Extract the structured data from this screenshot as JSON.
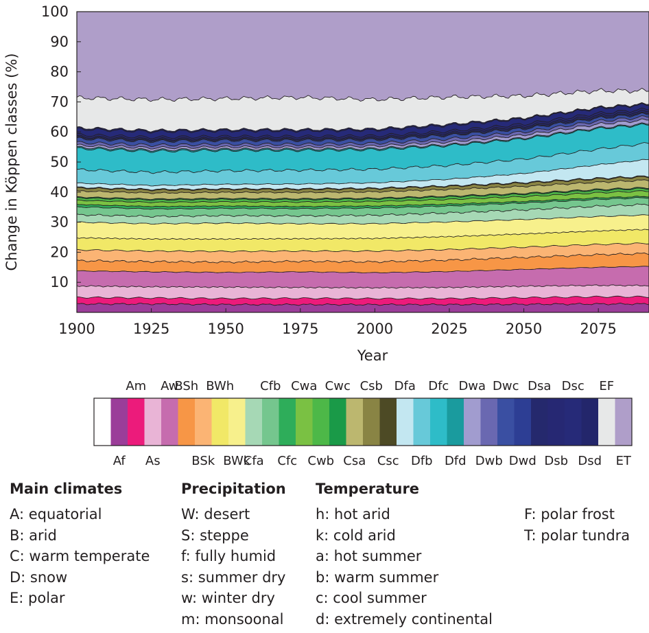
{
  "chart_data": {
    "type": "area",
    "stacked": true,
    "xlabel": "Year",
    "ylabel": "Change in Köppen classes (%)",
    "xlim": [
      1900,
      2092
    ],
    "ylim": [
      0,
      100
    ],
    "xticks": [
      1900,
      1925,
      1950,
      1975,
      2000,
      2025,
      2050,
      2075
    ],
    "yticks": [
      10,
      20,
      30,
      40,
      50,
      60,
      70,
      80,
      90,
      100
    ],
    "x": [
      1900,
      1925,
      1950,
      1975,
      2000,
      2025,
      2050,
      2075,
      2092
    ],
    "series": [
      {
        "name": "Af",
        "color": "#9b3d99",
        "values": [
          2.8,
          2.8,
          2.6,
          2.6,
          2.6,
          2.6,
          2.7,
          2.8,
          2.8
        ]
      },
      {
        "name": "Am",
        "color": "#ec1b7b",
        "values": [
          2.2,
          2.0,
          2.0,
          2.1,
          2.0,
          2.0,
          2.2,
          2.4,
          2.4
        ]
      },
      {
        "name": "As",
        "color": "#e9b4d6",
        "values": [
          3.8,
          3.7,
          3.8,
          3.6,
          3.6,
          3.7,
          3.8,
          3.8,
          3.7
        ]
      },
      {
        "name": "Aw",
        "color": "#c66cae",
        "values": [
          5.0,
          5.0,
          4.9,
          5.2,
          5.0,
          5.3,
          5.6,
          6.0,
          6.4
        ]
      },
      {
        "name": "BSh",
        "color": "#f79646",
        "values": [
          3.4,
          3.4,
          3.4,
          3.5,
          3.6,
          3.8,
          4.0,
          4.2,
          4.3
        ]
      },
      {
        "name": "BSk",
        "color": "#fbb474",
        "values": [
          3.6,
          3.5,
          3.6,
          3.4,
          3.6,
          3.5,
          3.4,
          3.4,
          3.4
        ]
      },
      {
        "name": "BWh",
        "color": "#f1e867",
        "values": [
          4.0,
          4.0,
          4.1,
          4.1,
          4.2,
          4.3,
          4.4,
          4.5,
          4.6
        ]
      },
      {
        "name": "BWk",
        "color": "#f7f08c",
        "values": [
          5.2,
          5.1,
          5.3,
          5.0,
          4.9,
          4.9,
          4.8,
          4.8,
          4.8
        ]
      },
      {
        "name": "Cfa",
        "color": "#a6d8b5",
        "values": [
          2.5,
          2.4,
          2.5,
          2.6,
          2.8,
          3.0,
          3.2,
          3.4,
          3.5
        ]
      },
      {
        "name": "Cfb",
        "color": "#75c68e",
        "values": [
          2.6,
          2.5,
          2.4,
          2.4,
          2.4,
          2.3,
          2.3,
          2.3,
          2.3
        ]
      },
      {
        "name": "Cfc",
        "color": "#2ead5a",
        "values": [
          0.8,
          0.8,
          0.8,
          0.7,
          0.7,
          0.6,
          0.5,
          0.5,
          0.4
        ]
      },
      {
        "name": "Cwa",
        "color": "#7ac143",
        "values": [
          1.4,
          1.4,
          1.4,
          1.5,
          1.5,
          1.6,
          1.6,
          1.7,
          1.8
        ]
      },
      {
        "name": "Cwb",
        "color": "#4db848",
        "values": [
          0.8,
          0.8,
          0.8,
          0.8,
          0.8,
          0.8,
          0.8,
          0.8,
          0.8
        ]
      },
      {
        "name": "Cwc",
        "color": "#1a9a48",
        "values": [
          0.3,
          0.3,
          0.3,
          0.3,
          0.3,
          0.3,
          0.3,
          0.3,
          0.3
        ]
      },
      {
        "name": "Csa",
        "color": "#bcb76f",
        "values": [
          2.0,
          2.0,
          2.0,
          2.1,
          2.1,
          2.2,
          2.3,
          2.4,
          2.5
        ]
      },
      {
        "name": "Csb",
        "color": "#898444",
        "values": [
          1.0,
          1.0,
          1.0,
          1.0,
          1.0,
          1.0,
          1.1,
          1.1,
          1.1
        ]
      },
      {
        "name": "Csc",
        "color": "#4d4a25",
        "values": [
          0.2,
          0.2,
          0.2,
          0.2,
          0.2,
          0.2,
          0.2,
          0.2,
          0.2
        ]
      },
      {
        "name": "Dfa",
        "color": "#c3e7f1",
        "values": [
          1.4,
          1.3,
          1.5,
          1.6,
          1.8,
          2.2,
          3.0,
          4.5,
          5.6
        ]
      },
      {
        "name": "Dfb",
        "color": "#67c9d9",
        "values": [
          4.5,
          4.4,
          4.5,
          4.6,
          4.5,
          4.6,
          4.8,
          5.2,
          5.4
        ]
      },
      {
        "name": "Dfc",
        "color": "#2ebcc8",
        "values": [
          7.0,
          7.0,
          6.8,
          6.6,
          6.5,
          6.6,
          6.7,
          6.8,
          6.2
        ]
      },
      {
        "name": "Dfd",
        "color": "#1a9b9e",
        "values": [
          0.4,
          0.4,
          0.4,
          0.4,
          0.4,
          0.3,
          0.3,
          0.3,
          0.3
        ]
      },
      {
        "name": "Dwa",
        "color": "#a19ccf",
        "values": [
          0.7,
          0.7,
          0.7,
          0.7,
          0.8,
          0.9,
          1.0,
          1.2,
          1.3
        ]
      },
      {
        "name": "Dwb",
        "color": "#6a68b1",
        "values": [
          0.9,
          0.9,
          0.9,
          0.9,
          0.9,
          1.0,
          1.0,
          1.0,
          1.0
        ]
      },
      {
        "name": "Dwc",
        "color": "#3a4fa2",
        "values": [
          1.3,
          1.3,
          1.3,
          1.3,
          1.2,
          1.2,
          1.1,
          1.0,
          0.9
        ]
      },
      {
        "name": "Dwd",
        "color": "#2d3e94",
        "values": [
          0.3,
          0.3,
          0.3,
          0.3,
          0.3,
          0.3,
          0.3,
          0.3,
          0.3
        ]
      },
      {
        "name": "Dsa",
        "color": "#25296d",
        "values": [
          0.4,
          0.4,
          0.4,
          0.4,
          0.4,
          0.5,
          0.5,
          0.6,
          0.6
        ]
      },
      {
        "name": "Dsb",
        "color": "#262873",
        "values": [
          0.6,
          0.6,
          0.6,
          0.6,
          0.6,
          0.6,
          0.7,
          0.7,
          0.7
        ]
      },
      {
        "name": "Dsc",
        "color": "#262a78",
        "values": [
          1.9,
          1.9,
          1.9,
          1.9,
          1.9,
          1.9,
          1.8,
          1.7,
          1.5
        ]
      },
      {
        "name": "Dsd",
        "color": "#23266b",
        "values": [
          0.4,
          0.4,
          0.4,
          0.4,
          0.4,
          0.4,
          0.3,
          0.3,
          0.3
        ]
      },
      {
        "name": "EF",
        "color": "#e7e8e8",
        "values": [
          10.0,
          10.3,
          10.3,
          10.7,
          9.8,
          9.0,
          7.3,
          5.5,
          4.3
        ]
      },
      {
        "name": "ET",
        "color": "#af9ec9",
        "values": [
          27.8,
          27.8,
          27.8,
          27.8,
          27.6,
          27.5,
          27.5,
          27.5,
          27.4
        ]
      }
    ],
    "legend": {
      "placement": "below",
      "top_labels": [
        "Am",
        "Aw",
        "BSh",
        "BWh",
        "Cfb",
        "Cwa",
        "Cwc",
        "Csb",
        "Dfa",
        "Dfc",
        "Dwa",
        "Dwc",
        "Dsa",
        "Dsc",
        "EF"
      ],
      "bottom_labels": [
        "Af",
        "As",
        "BSk",
        "BWk",
        "Cfa",
        "Cfc",
        "Cwb",
        "Csa",
        "Csc",
        "Dfb",
        "Dfd",
        "Dwb",
        "Dwd",
        "Dsb",
        "Dsd",
        "ET"
      ]
    }
  },
  "key": {
    "main_climates": {
      "title": "Main climates",
      "items": [
        "A: equatorial",
        "B: arid",
        "C: warm temperate",
        "D: snow",
        "E: polar"
      ]
    },
    "precipitation": {
      "title": "Precipitation",
      "items": [
        "W: desert",
        "S: steppe",
        "f: fully humid",
        "s: summer dry",
        "w: winter dry",
        "m: monsoonal"
      ]
    },
    "temperature": {
      "title": "Temperature",
      "items": [
        "h: hot arid",
        "k: cold arid",
        "a: hot summer",
        "b: warm summer",
        "c: cool summer",
        "d: extremely continental"
      ]
    },
    "temperature_polar": {
      "items": [
        "F: polar frost",
        "T: polar tundra"
      ]
    }
  }
}
